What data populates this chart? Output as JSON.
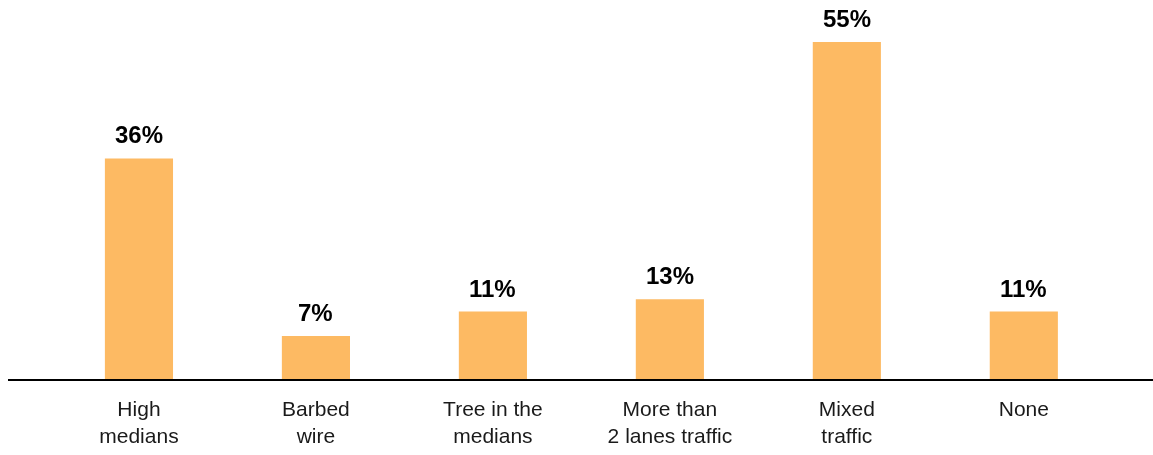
{
  "chart_data": {
    "type": "bar",
    "categories": [
      "High\nmedians",
      "Barbed\nwire",
      "Tree in the\nmedians",
      "More than\n2 lanes traffic",
      "Mixed\ntraffic",
      "None"
    ],
    "values": [
      36,
      7,
      11,
      13,
      55,
      11
    ],
    "value_labels": [
      "36%",
      "7%",
      "11%",
      "13%",
      "55%",
      "11%"
    ],
    "color": "#fdba63"
  }
}
